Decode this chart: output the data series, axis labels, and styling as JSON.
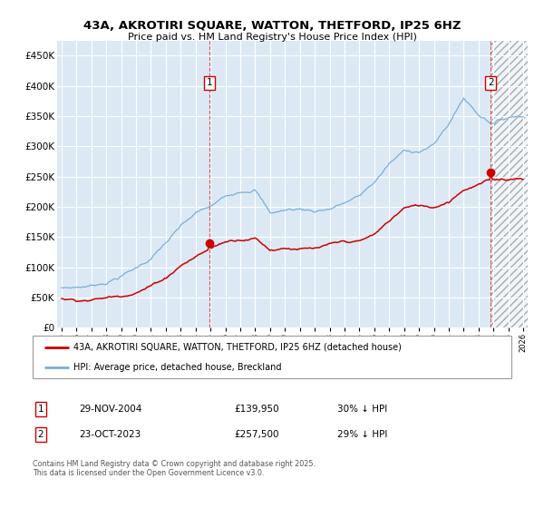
{
  "title": "43A, AKROTIRI SQUARE, WATTON, THETFORD, IP25 6HZ",
  "subtitle": "Price paid vs. HM Land Registry's House Price Index (HPI)",
  "hpi_label": "HPI: Average price, detached house, Breckland",
  "price_label": "43A, AKROTIRI SQUARE, WATTON, THETFORD, IP25 6HZ (detached house)",
  "sale1_date": "29-NOV-2004",
  "sale1_price": 139950,
  "sale1_pct": "30%",
  "sale2_date": "23-OCT-2023",
  "sale2_price": 257500,
  "sale2_pct": "29%",
  "footer": "Contains HM Land Registry data © Crown copyright and database right 2025.\nThis data is licensed under the Open Government Licence v3.0.",
  "hpi_color": "#7bafd4",
  "price_color": "#cc0000",
  "bg_color": "#dce9f5",
  "grid_color": "#ffffff",
  "fig_bg": "#ffffff",
  "ylim": [
    0,
    475000
  ],
  "yticks": [
    0,
    50000,
    100000,
    150000,
    200000,
    250000,
    300000,
    350000,
    400000,
    450000
  ],
  "xstart": 1995,
  "xend": 2026,
  "sale1_year": 2004.92,
  "sale2_year": 2023.81,
  "hpi_base_years": [
    1995,
    1996,
    1997,
    1998,
    1999,
    2000,
    2001,
    2002,
    2003,
    2004,
    2005,
    2006,
    2007,
    2008,
    2009,
    2010,
    2011,
    2012,
    2013,
    2014,
    2015,
    2016,
    2017,
    2018,
    2019,
    2020,
    2021,
    2022,
    2023,
    2024,
    2025,
    2026
  ],
  "hpi_base_vals": [
    66000,
    68000,
    71000,
    78000,
    90000,
    103000,
    120000,
    145000,
    170000,
    190000,
    200000,
    215000,
    228000,
    235000,
    195000,
    200000,
    202000,
    200000,
    205000,
    215000,
    225000,
    248000,
    278000,
    298000,
    300000,
    310000,
    345000,
    388000,
    362000,
    350000,
    360000,
    365000
  ],
  "price_base_years": [
    1995,
    1996,
    1997,
    1998,
    1999,
    2000,
    2001,
    2002,
    2003,
    2004.92,
    2006,
    2007,
    2008,
    2009,
    2010,
    2011,
    2012,
    2013,
    2014,
    2015,
    2016,
    2017,
    2018,
    2019,
    2020,
    2021,
    2022,
    2023.81,
    2024,
    2025,
    2026
  ],
  "price_base_vals": [
    48000,
    47000,
    49000,
    52000,
    56000,
    65000,
    76000,
    90000,
    112000,
    139950,
    152000,
    158000,
    162000,
    143000,
    148000,
    148000,
    146000,
    150000,
    153000,
    153000,
    163000,
    185000,
    207000,
    210000,
    208000,
    220000,
    242000,
    257500,
    258000,
    260000,
    263000
  ]
}
